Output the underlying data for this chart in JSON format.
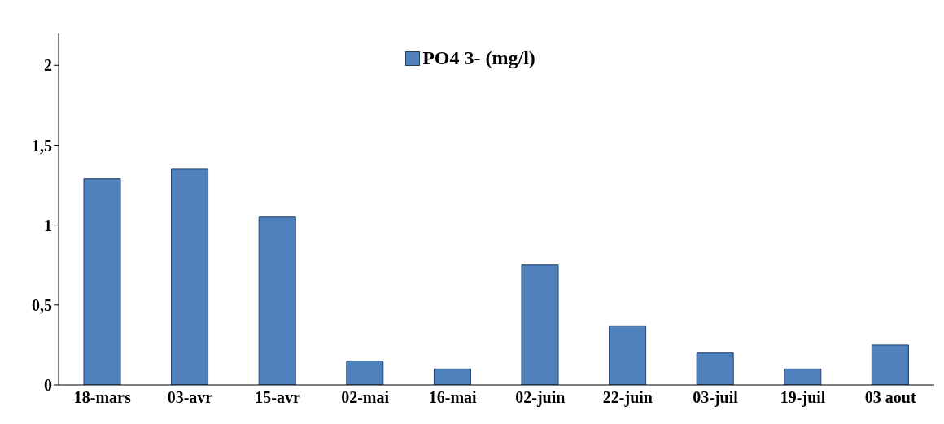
{
  "chart_data": {
    "type": "bar",
    "categories": [
      "18-mars",
      "03-avr",
      "15-avr",
      "02-mai",
      "16-mai",
      "02-juin",
      "22-juin",
      "03-juil",
      "19-juil",
      "03 aout"
    ],
    "series": [
      {
        "name": "PO4 3- (mg/l)",
        "color": "#4f81bd",
        "values": [
          1.29,
          1.35,
          1.05,
          0.15,
          0.1,
          0.75,
          0.37,
          0.2,
          0.1,
          0.25
        ]
      }
    ],
    "ylim": [
      0,
      2.2
    ],
    "yticks": [
      0,
      {
        "value": 0.5,
        "label": "0,5"
      },
      1,
      {
        "value": 1.5,
        "label": "1,5"
      },
      2
    ],
    "grid": false,
    "legend": "top"
  }
}
